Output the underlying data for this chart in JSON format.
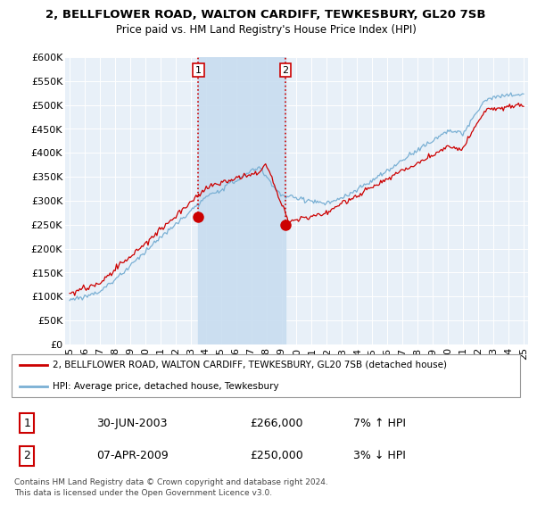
{
  "title": "2, BELLFLOWER ROAD, WALTON CARDIFF, TEWKESBURY, GL20 7SB",
  "subtitle": "Price paid vs. HM Land Registry's House Price Index (HPI)",
  "ylabel_ticks": [
    "£0",
    "£50K",
    "£100K",
    "£150K",
    "£200K",
    "£250K",
    "£300K",
    "£350K",
    "£400K",
    "£450K",
    "£500K",
    "£550K",
    "£600K"
  ],
  "ytick_values": [
    0,
    50000,
    100000,
    150000,
    200000,
    250000,
    300000,
    350000,
    400000,
    450000,
    500000,
    550000,
    600000
  ],
  "ylim": [
    0,
    600000
  ],
  "xlim_start": 1994.7,
  "xlim_end": 2025.3,
  "background_color": "#ffffff",
  "plot_bg_color": "#e8f0f8",
  "grid_color": "#ffffff",
  "red_line_color": "#cc0000",
  "blue_line_color": "#7ab0d4",
  "shade_color": "#c8ddf0",
  "transaction1_date": 2003.5,
  "transaction1_price": 266000,
  "transaction2_date": 2009.27,
  "transaction2_price": 250000,
  "legend_line1": "2, BELLFLOWER ROAD, WALTON CARDIFF, TEWKESBURY, GL20 7SB (detached house)",
  "legend_line2": "HPI: Average price, detached house, Tewkesbury",
  "table_row1": [
    "1",
    "30-JUN-2003",
    "£266,000",
    "7% ↑ HPI"
  ],
  "table_row2": [
    "2",
    "07-APR-2009",
    "£250,000",
    "3% ↓ HPI"
  ],
  "footer": "Contains HM Land Registry data © Crown copyright and database right 2024.\nThis data is licensed under the Open Government Licence v3.0.",
  "xtick_years": [
    1995,
    1996,
    1997,
    1998,
    1999,
    2000,
    2001,
    2002,
    2003,
    2004,
    2005,
    2006,
    2007,
    2008,
    2009,
    2010,
    2011,
    2012,
    2013,
    2014,
    2015,
    2016,
    2017,
    2018,
    2019,
    2020,
    2021,
    2022,
    2023,
    2024,
    2025
  ],
  "xtick_labels": [
    "95",
    "96",
    "97",
    "98",
    "99",
    "00",
    "01",
    "02",
    "03",
    "04",
    "05",
    "06",
    "07",
    "08",
    "09",
    "10",
    "11",
    "12",
    "13",
    "14",
    "15",
    "16",
    "17",
    "18",
    "19",
    "20",
    "21",
    "22",
    "23",
    "24",
    "25"
  ]
}
